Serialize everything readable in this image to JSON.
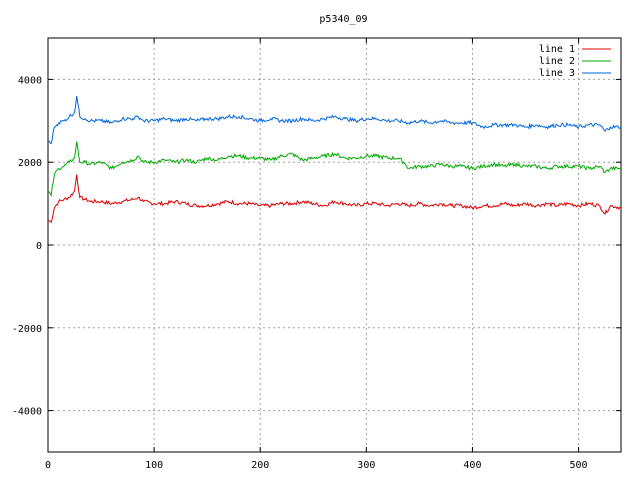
{
  "chart_data": {
    "type": "line",
    "title": "p5340_09",
    "xlabel": "",
    "ylabel": "",
    "xlim": [
      0,
      540
    ],
    "ylim": [
      -5000,
      5000
    ],
    "x_ticks": [
      0,
      100,
      200,
      300,
      400,
      500
    ],
    "y_ticks": [
      -4000,
      -2000,
      0,
      2000,
      4000
    ],
    "grid": true,
    "legend_position": "top-right",
    "series": [
      {
        "name": "line 1",
        "color": "#dd0000",
        "x": [
          0,
          3,
          6,
          10,
          15,
          20,
          25,
          27,
          30,
          35,
          40,
          50,
          60,
          70,
          80,
          85,
          90,
          100,
          110,
          120,
          130,
          140,
          150,
          160,
          170,
          180,
          190,
          200,
          210,
          220,
          230,
          240,
          250,
          260,
          270,
          280,
          290,
          300,
          310,
          320,
          330,
          340,
          350,
          360,
          370,
          380,
          390,
          400,
          410,
          420,
          430,
          440,
          450,
          460,
          470,
          480,
          490,
          500,
          510,
          520,
          525,
          530,
          540
        ],
        "y": [
          600,
          550,
          900,
          1050,
          1100,
          1150,
          1300,
          1700,
          1150,
          1100,
          1050,
          1050,
          1000,
          1050,
          1100,
          1150,
          1050,
          1000,
          1000,
          1050,
          1000,
          950,
          950,
          1000,
          1050,
          1000,
          1000,
          950,
          950,
          1000,
          1000,
          1050,
          1000,
          950,
          1050,
          1000,
          950,
          1000,
          1000,
          950,
          1000,
          950,
          1000,
          950,
          1000,
          950,
          950,
          900,
          950,
          950,
          1000,
          950,
          1000,
          950,
          1000,
          950,
          1000,
          950,
          1000,
          950,
          750,
          950,
          900
        ]
      },
      {
        "name": "line 2",
        "color": "#00aa00",
        "x": [
          0,
          3,
          6,
          10,
          15,
          20,
          25,
          27,
          30,
          35,
          40,
          50,
          60,
          70,
          80,
          85,
          90,
          100,
          110,
          120,
          130,
          140,
          150,
          160,
          170,
          180,
          190,
          200,
          210,
          220,
          230,
          240,
          250,
          260,
          270,
          280,
          290,
          300,
          310,
          320,
          330,
          335,
          340,
          350,
          360,
          370,
          380,
          390,
          400,
          410,
          420,
          430,
          440,
          450,
          460,
          470,
          480,
          490,
          500,
          510,
          520,
          525,
          530,
          540
        ],
        "y": [
          1300,
          1200,
          1700,
          1850,
          1900,
          2000,
          2100,
          2500,
          2000,
          2000,
          1950,
          2000,
          1850,
          2000,
          2050,
          2150,
          2000,
          2000,
          2050,
          2000,
          2050,
          2000,
          2100,
          2050,
          2150,
          2150,
          2100,
          2100,
          2050,
          2150,
          2200,
          2050,
          2100,
          2150,
          2200,
          2100,
          2100,
          2150,
          2150,
          2100,
          2100,
          2000,
          1850,
          1900,
          1900,
          1950,
          1900,
          1900,
          1850,
          1900,
          1950,
          1900,
          1950,
          1900,
          1900,
          1850,
          1900,
          1900,
          1900,
          1850,
          1900,
          1750,
          1850,
          1850
        ]
      },
      {
        "name": "line 3",
        "color": "#0066dd",
        "x": [
          0,
          3,
          6,
          10,
          15,
          20,
          25,
          27,
          30,
          35,
          40,
          50,
          60,
          70,
          80,
          85,
          90,
          100,
          110,
          120,
          130,
          140,
          150,
          160,
          170,
          180,
          190,
          200,
          210,
          220,
          230,
          240,
          250,
          260,
          270,
          280,
          290,
          300,
          310,
          320,
          330,
          340,
          350,
          360,
          370,
          380,
          390,
          400,
          410,
          420,
          430,
          440,
          450,
          460,
          470,
          480,
          490,
          500,
          510,
          520,
          525,
          530,
          540
        ],
        "y": [
          2500,
          2450,
          2850,
          2950,
          3000,
          3100,
          3200,
          3600,
          3100,
          3050,
          3000,
          3000,
          2950,
          3050,
          3050,
          3100,
          3000,
          3000,
          3050,
          3000,
          3050,
          3000,
          3050,
          3050,
          3100,
          3100,
          3050,
          3000,
          3050,
          3000,
          3000,
          3050,
          3000,
          3050,
          3100,
          3050,
          3000,
          3050,
          3050,
          3000,
          3000,
          2950,
          3000,
          2950,
          3000,
          2950,
          2950,
          2950,
          2850,
          2900,
          2900,
          2900,
          2850,
          2900,
          2850,
          2900,
          2900,
          2850,
          2900,
          2900,
          2750,
          2850,
          2850
        ]
      }
    ]
  }
}
